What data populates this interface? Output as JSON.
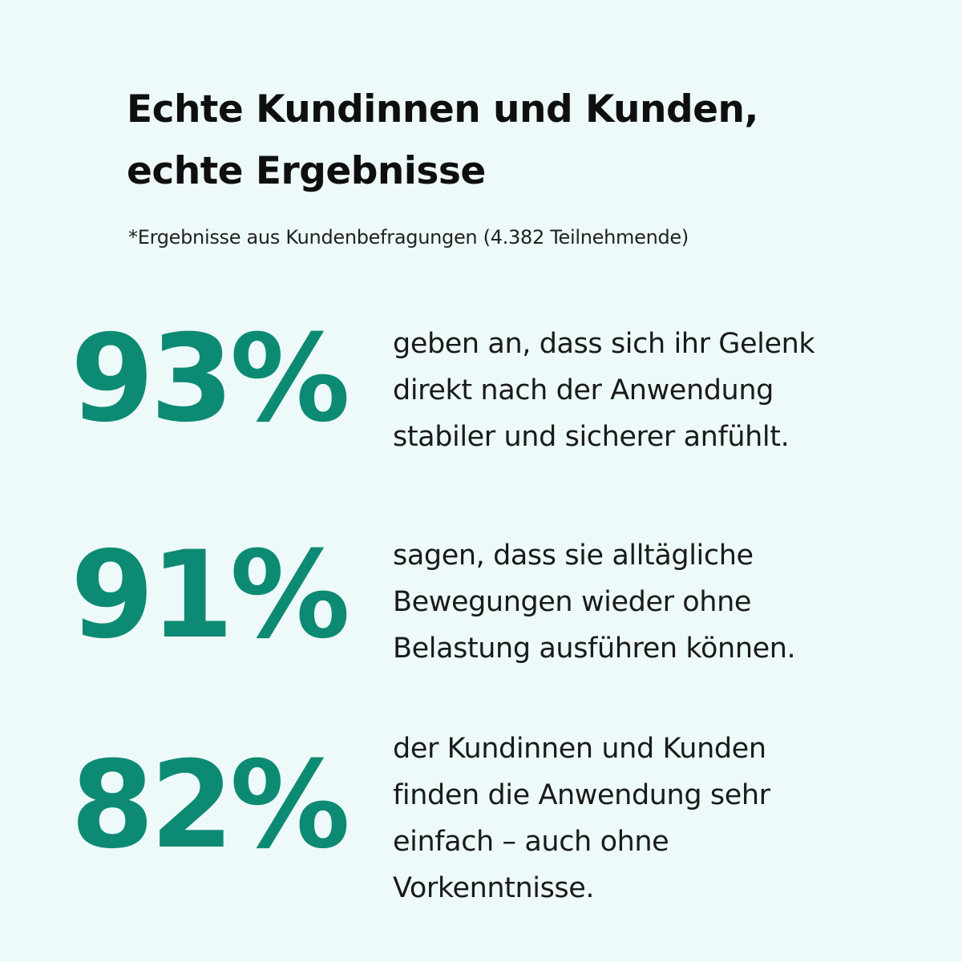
{
  "header": {
    "title_lines": [
      "Echte Kundinnen und Kunden,",
      "echte Ergebnisse"
    ],
    "subtitle": "*Ergebnisse aus Kundenbefragungen (4.382 Teilnehmende)"
  },
  "stats": [
    {
      "value": "93%",
      "text_lines": [
        "geben an, dass sich ihr Gelenk",
        "direkt nach der Anwendung",
        "stabiler und sicherer anfühlt."
      ]
    },
    {
      "value": "91%",
      "text_lines": [
        "sagen, dass sie alltägliche",
        "Bewegungen wieder ohne",
        "Belastung ausführen können."
      ]
    },
    {
      "value": "82%",
      "text_lines": [
        "der Kundinnen und Kunden",
        "finden die Anwendung sehr",
        "einfach – auch ohne",
        "Vorkenntnisse."
      ]
    }
  ],
  "colors": {
    "background": "#eef9f9",
    "accent": "#0d8a73",
    "text": "#111111"
  }
}
